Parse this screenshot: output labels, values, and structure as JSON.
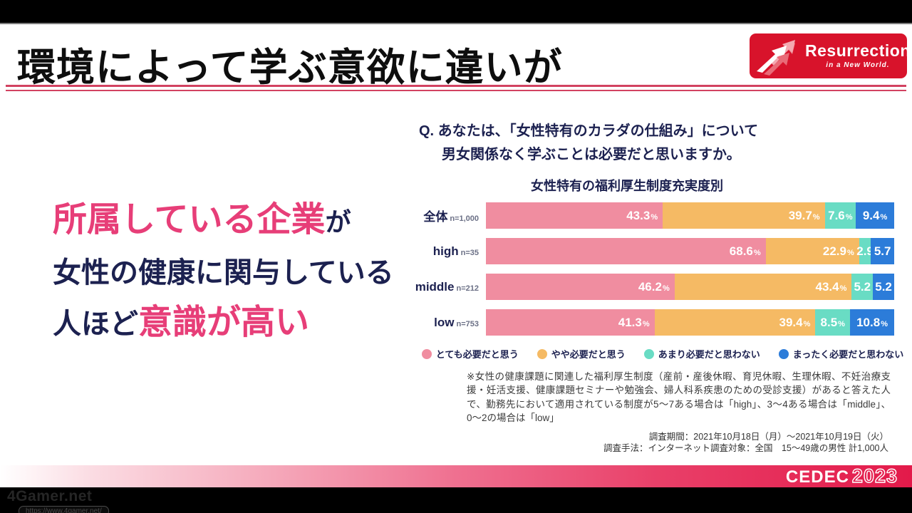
{
  "colors": {
    "pink_text": "#E73E78",
    "navy_text": "#1C2150",
    "rule_red": "#D24261",
    "logo_bg": "#D8132B",
    "footer_red": "#E31A4A"
  },
  "header": {
    "title": "環境によって学ぶ意欲に違いが",
    "logo_line1": "Resurrection",
    "logo_line2": "in a New World."
  },
  "question": {
    "line1": "Q. あなたは、「女性特有のカラダの仕組み」について",
    "line2": "男女関係なく学ぶことは必要だと思いますか。"
  },
  "headline": {
    "seg1": "所属している企業",
    "seg2": "が",
    "seg3": "女性の健康に関与している",
    "seg4": "人ほど",
    "seg5": "意識が高い"
  },
  "chart_data": {
    "type": "bar",
    "orientation": "horizontal-stacked",
    "title": "女性特有の福利厚生制度充実度別",
    "categories": [
      "全体",
      "high",
      "middle",
      "low"
    ],
    "sample_sizes": [
      "n=1,000",
      "n=35",
      "n=212",
      "n=753"
    ],
    "xlim": [
      0,
      100
    ],
    "series": [
      {
        "name": "とても必要だと思う",
        "color": "#F08DA0",
        "values": [
          43.3,
          68.6,
          46.2,
          41.3
        ]
      },
      {
        "name": "やや必要だと思う",
        "color": "#F5BA64",
        "values": [
          39.7,
          22.9,
          43.4,
          39.4
        ]
      },
      {
        "name": "あまり必要だと思わない",
        "color": "#69DCC4",
        "values": [
          7.6,
          2.9,
          5.2,
          8.5
        ]
      },
      {
        "name": "まったく必要だと思わない",
        "color": "#2C7CD9",
        "values": [
          9.4,
          5.7,
          5.2,
          10.8
        ]
      }
    ],
    "value_labels": [
      [
        "43.3%",
        "39.7%",
        "7.6%",
        "9.4%"
      ],
      [
        "68.6%",
        "22.9%",
        "2.9",
        "5.7"
      ],
      [
        "46.2%",
        "43.4%",
        "5.2",
        "5.2"
      ],
      [
        "41.3%",
        "39.4%",
        "8.5%",
        "10.8%"
      ]
    ],
    "legend_position": "bottom"
  },
  "footnote": "※女性の健康課題に関連した福利厚生制度（産前・産後休暇、育児休暇、生理休暇、不妊治療支援・妊活支援、健康課題セミナーや勉強会、婦人科系疾患のための受診支援）があると答えた人で、勤務先において適用されている制度が5〜7ある場合は「high」、3〜4ある場合は「middle」、0〜2の場合は「low」",
  "survey": {
    "line1": "調査期間：2021年10月18日（月）〜2021年10月19日（火）",
    "line2": "調査手法：インターネット調査対象：全国　15〜49歳の男性 計1,000人"
  },
  "footer": {
    "cedec_word": "CEDEC",
    "cedec_year": "2023"
  },
  "watermark": {
    "name": "4Gamer.net",
    "url": "https://www.4gamer.net/"
  }
}
